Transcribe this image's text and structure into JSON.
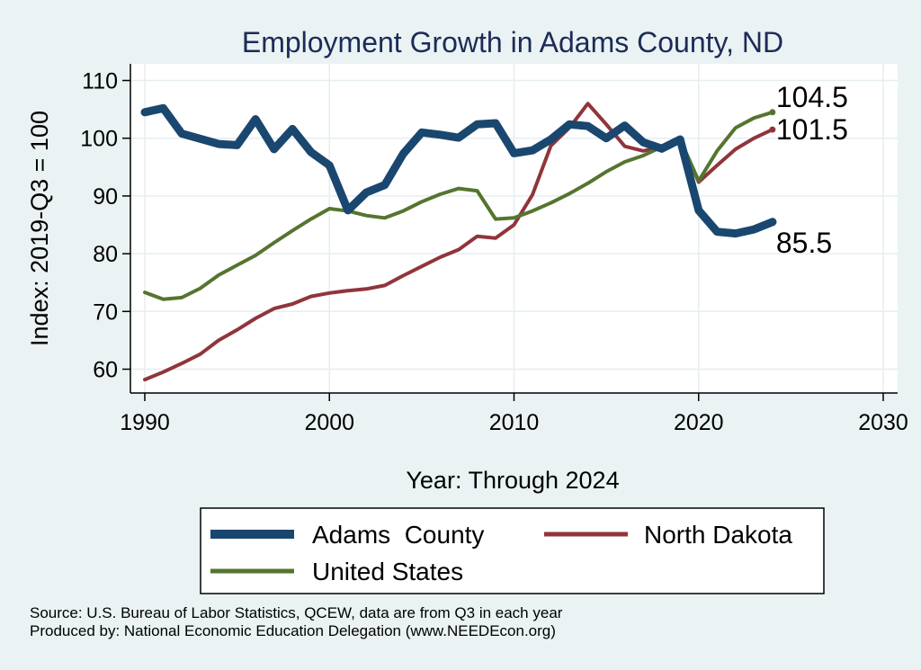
{
  "chart_data": {
    "type": "line",
    "title": "Employment Growth in Adams County, ND",
    "xlabel": "Year: Through 2024",
    "ylabel": "Index: 2019-Q3 = 100",
    "xlim": [
      1990,
      2030
    ],
    "ylim": [
      56,
      112
    ],
    "xticks": [
      1990,
      2000,
      2010,
      2020,
      2030
    ],
    "yticks": [
      60,
      70,
      80,
      90,
      100,
      110
    ],
    "grid": true,
    "legend_position": "bottom",
    "x": [
      1990,
      1991,
      1992,
      1993,
      1994,
      1995,
      1996,
      1997,
      1998,
      1999,
      2000,
      2001,
      2002,
      2003,
      2004,
      2005,
      2006,
      2007,
      2008,
      2009,
      2010,
      2011,
      2012,
      2013,
      2014,
      2015,
      2016,
      2017,
      2018,
      2019,
      2020,
      2021,
      2022,
      2023,
      2024
    ],
    "series": [
      {
        "name": "Adams  County",
        "color": "#1a476f",
        "width": 9,
        "values": [
          104.5,
          105.2,
          100.8,
          99.9,
          99,
          98.8,
          103.3,
          98.1,
          101.6,
          97.6,
          95.3,
          87.5,
          90.6,
          91.9,
          97.3,
          101,
          100.6,
          100.1,
          102.4,
          102.6,
          97.4,
          97.9,
          99.8,
          102.4,
          102.1,
          100,
          102.2,
          99.3,
          98.2,
          99.8,
          87.5,
          83.8,
          83.5,
          84.2,
          85.5
        ],
        "end_label": "85.5"
      },
      {
        "name": "North Dakota",
        "color": "#90353b",
        "width": 4,
        "values": [
          58.2,
          59.5,
          61,
          62.6,
          65,
          66.8,
          68.8,
          70.5,
          71.3,
          72.6,
          73.2,
          73.6,
          73.9,
          74.5,
          76.2,
          77.8,
          79.4,
          80.7,
          83,
          82.7,
          85,
          90.2,
          98.7,
          101.8,
          106,
          102.4,
          98.6,
          97.8,
          98.5,
          99.8,
          92.4,
          95.3,
          98.1,
          100,
          101.5
        ],
        "end_label": "101.5"
      },
      {
        "name": "United States",
        "color": "#55752f",
        "width": 4,
        "values": [
          73.3,
          72.1,
          72.4,
          74,
          76.3,
          78,
          79.7,
          81.9,
          84,
          86,
          87.8,
          87.4,
          86.6,
          86.2,
          87.4,
          89,
          90.3,
          91.3,
          90.9,
          86,
          86.2,
          87.4,
          88.8,
          90.4,
          92.2,
          94.2,
          95.9,
          97,
          98.5,
          99.8,
          92.6,
          97.8,
          101.8,
          103.5,
          104.5
        ],
        "end_label": "104.5"
      }
    ]
  },
  "notes": {
    "source": "Source: U.S. Bureau of Labor Statistics, QCEW, data are from Q3 in each year",
    "produced_by": "Produced by: National Economic Education Delegation (www.NEEDEcon.org)"
  }
}
